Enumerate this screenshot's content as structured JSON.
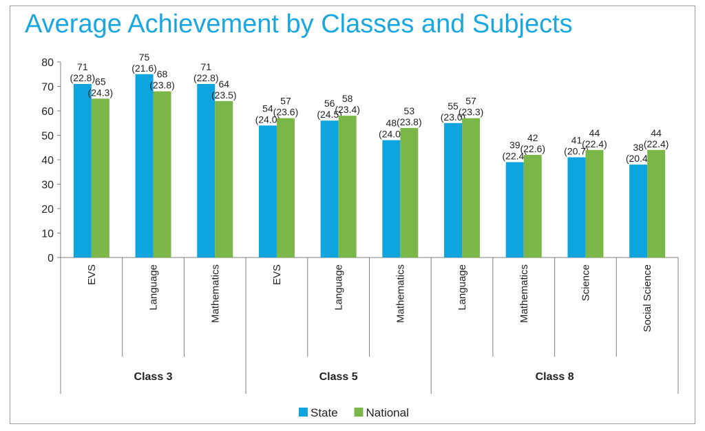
{
  "chart_data": {
    "type": "bar",
    "title": "Average Achievement by Classes and Subjects",
    "ylim": [
      0,
      80
    ],
    "yticks": [
      "0",
      "10",
      "20",
      "30",
      "40",
      "50",
      "60",
      "70",
      "80"
    ],
    "grid": false,
    "legend_position": "bottom",
    "groups": [
      {
        "name": "Class 3",
        "subjects": [
          "EVS",
          "Language",
          "Mathematics"
        ]
      },
      {
        "name": "Class 5",
        "subjects": [
          "EVS",
          "Language",
          "Mathematics"
        ]
      },
      {
        "name": "Class 8",
        "subjects": [
          "Language",
          "Mathematics",
          "Science",
          "Social Science"
        ]
      }
    ],
    "categories": [
      "EVS",
      "Language",
      "Mathematics",
      "EVS",
      "Language",
      "Mathematics",
      "Language",
      "Mathematics",
      "Science",
      "Social Science"
    ],
    "series": [
      {
        "name": "State",
        "color": "#0ea4de",
        "values": [
          71,
          75,
          71,
          54,
          56,
          48,
          55,
          39,
          41,
          38
        ],
        "labels_value": [
          "71",
          "75",
          "71",
          "54",
          "56",
          "48",
          "55",
          "39",
          "41",
          "38"
        ],
        "labels_sd": [
          "(22.8)",
          "(21.6)",
          "(22.8)",
          "(24.0)",
          "(24.5)",
          "(24.0)",
          "(23.0)",
          "(22.4)",
          "(20.7)",
          "(20.4)"
        ]
      },
      {
        "name": "National",
        "color": "#7ab648",
        "values": [
          65,
          68,
          64,
          57,
          58,
          53,
          57,
          42,
          44,
          44
        ],
        "labels_value": [
          "65",
          "68",
          "64",
          "57",
          "58",
          "53",
          "57",
          "42",
          "44",
          "44"
        ],
        "labels_sd": [
          "(24.3)",
          "(23.8)",
          "(23.5)",
          "(23.6)",
          "(23.4)",
          "(23.8)",
          "(23.3)",
          "(22.6)",
          "(22.4)",
          "(22.4)"
        ]
      }
    ]
  }
}
